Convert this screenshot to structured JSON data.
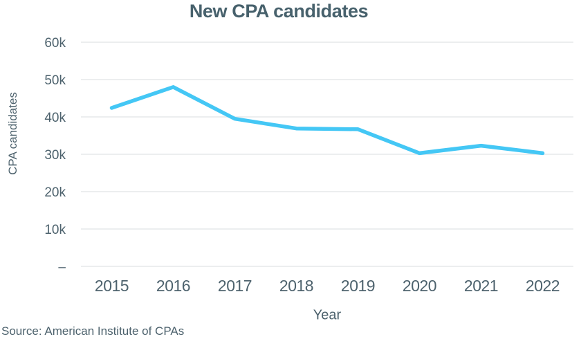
{
  "title": "New CPA candidates",
  "source": "Source: American Institute of CPAs",
  "chart_data": {
    "type": "line",
    "title": "New CPA candidates",
    "xlabel": "Year",
    "ylabel": "CPA candidates",
    "categories": [
      "2015",
      "2016",
      "2017",
      "2018",
      "2019",
      "2020",
      "2021",
      "2022"
    ],
    "series": [
      {
        "name": "New CPA candidates",
        "values": [
          42400,
          48000,
          39500,
          36900,
          36700,
          30300,
          32300,
          30300
        ]
      }
    ],
    "ylim": [
      0,
      60000
    ],
    "ytick_step": 10000,
    "ytick_labels": [
      "–",
      "10k",
      "20k",
      "30k",
      "40k",
      "50k",
      "60k"
    ],
    "grid": true,
    "legend_position": "none",
    "line_color": "#44c7f5",
    "text_color": "#4d626d",
    "grid_color": "#e6e9ea"
  }
}
